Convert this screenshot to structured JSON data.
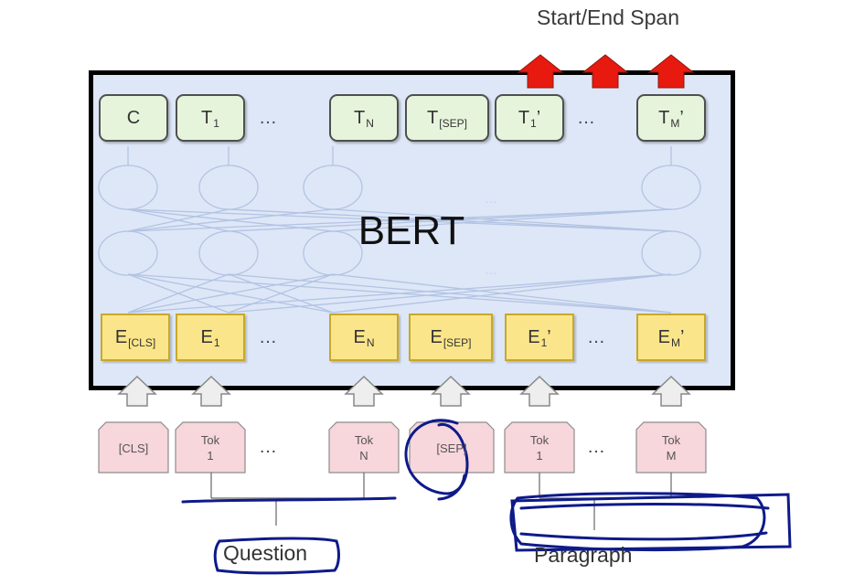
{
  "span_title": "Start/End Span",
  "model_label": "BERT",
  "ellipsis": "…",
  "outputs": [
    {
      "main": "C",
      "sub": "",
      "mark": ""
    },
    {
      "main": "T",
      "sub": "1",
      "mark": ""
    },
    {
      "main": "T",
      "sub": "N",
      "mark": ""
    },
    {
      "main": "T",
      "sub": "[SEP]",
      "mark": ""
    },
    {
      "main": "T",
      "sub": "1",
      "mark": "’"
    },
    {
      "main": "T",
      "sub": "M",
      "mark": "’"
    }
  ],
  "embeddings": [
    {
      "main": "E",
      "sub": "[CLS]",
      "mark": ""
    },
    {
      "main": "E",
      "sub": "1",
      "mark": ""
    },
    {
      "main": "E",
      "sub": "N",
      "mark": ""
    },
    {
      "main": "E",
      "sub": "[SEP]",
      "mark": ""
    },
    {
      "main": "E",
      "sub": "1",
      "mark": "’"
    },
    {
      "main": "E",
      "sub": "M",
      "mark": "’"
    }
  ],
  "tokens": [
    {
      "line1": "[CLS]",
      "line2": ""
    },
    {
      "line1": "Tok",
      "line2": "1"
    },
    {
      "line1": "Tok",
      "line2": "N"
    },
    {
      "line1": "[SEP]",
      "line2": ""
    },
    {
      "line1": "Tok",
      "line2": "1"
    },
    {
      "line1": "Tok",
      "line2": "M"
    }
  ],
  "segment_labels": {
    "question": "Question",
    "paragraph": "Paragraph"
  },
  "colors": {
    "bert_bg": "#dde7f7",
    "output_box": "#e6f4dc",
    "embedding_box": "#fbe58a",
    "token_box": "#f7d6dc",
    "span_arrow": "#e8190f",
    "annotation_ink": "#0e1a8a"
  }
}
